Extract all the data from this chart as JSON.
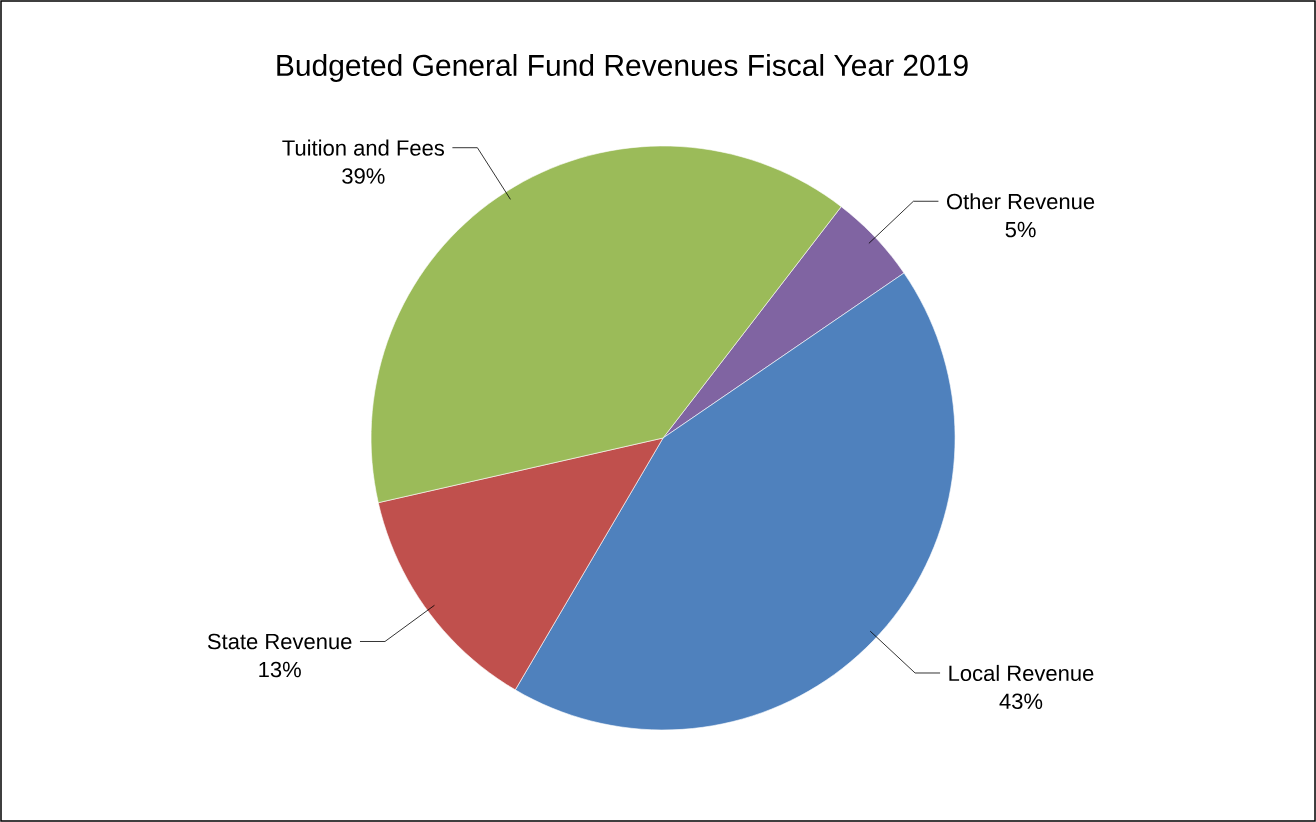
{
  "chart_data": {
    "type": "pie",
    "title": "Budgeted General Fund Revenues Fiscal Year 2019",
    "categories": [
      "Other Revenue",
      "Local Revenue",
      "State Revenue",
      "Tuition and Fees"
    ],
    "values": [
      5,
      43,
      13,
      39
    ],
    "colors": [
      "#8064a2",
      "#4f81bd",
      "#c0504d",
      "#9bbb59"
    ],
    "value_labels": [
      "5%",
      "43%",
      "13%",
      "39%"
    ]
  }
}
